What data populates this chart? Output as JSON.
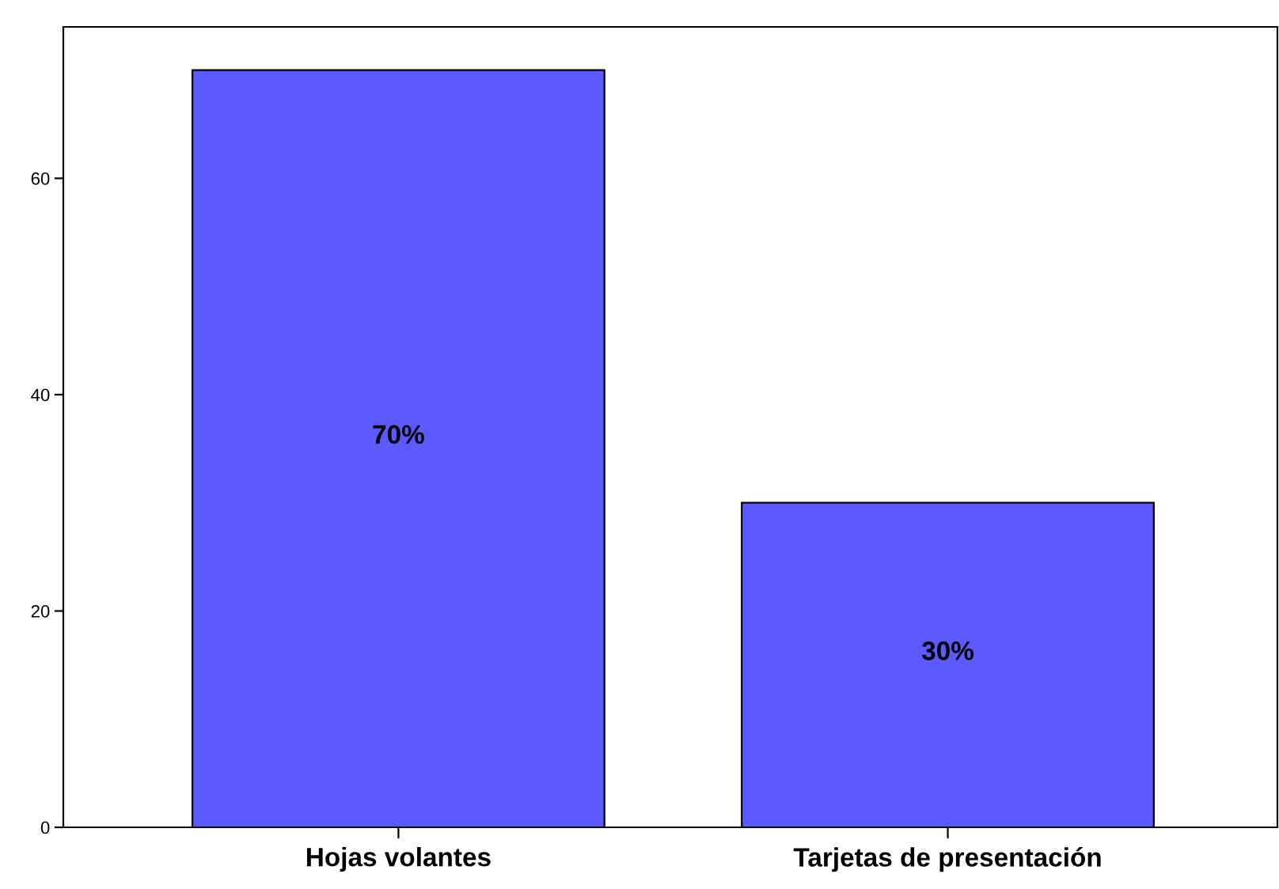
{
  "chart_data": {
    "type": "bar",
    "categories": [
      "Hojas volantes",
      "Tarjetas de presentación"
    ],
    "values": [
      70,
      30
    ],
    "value_labels": [
      "70%",
      "30%"
    ],
    "color": "#5a5aff",
    "ylim": [
      0,
      74
    ],
    "yticks": [
      0,
      20,
      40,
      60
    ],
    "grid": false
  }
}
